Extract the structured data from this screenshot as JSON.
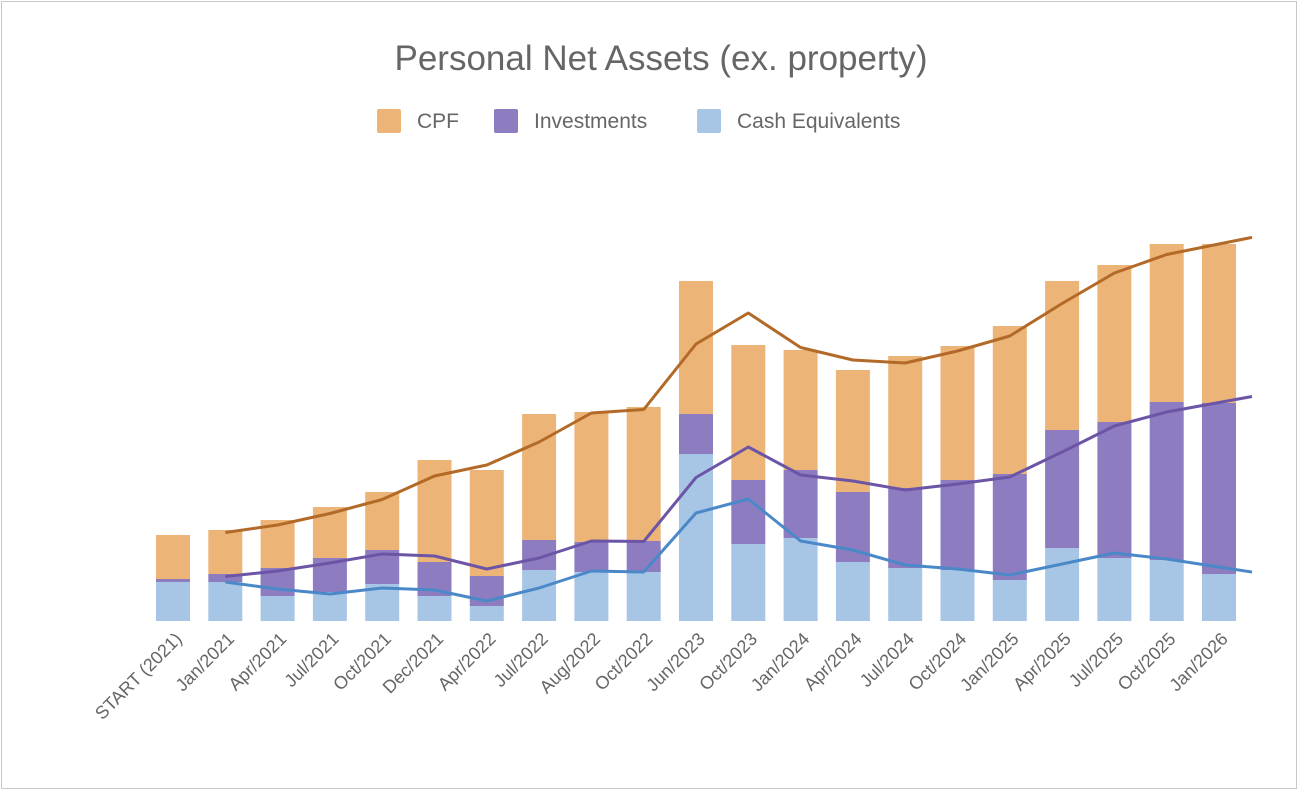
{
  "chart_data": {
    "type": "bar",
    "stacked": true,
    "title": "Personal Net Assets (ex. property)",
    "xlabel": "",
    "ylabel": "",
    "ylim": [
      0,
      420
    ],
    "grid": false,
    "y_axis_labels_shown": false,
    "legend_position": "top",
    "categories": [
      "START (2021)",
      "Jan/2021",
      "Apr/2021",
      "Jul/2021",
      "Oct/2021",
      "Dec/2021",
      "Apr/2022",
      "Jul/2022",
      "Aug/2022",
      "Oct/2022",
      "Jun/2023",
      "Oct/2023",
      "Jan/2024",
      "Apr/2024",
      "Jul/2024",
      "Oct/2024",
      "Jan/2025",
      "Apr/2025",
      "Jul/2025",
      "Oct/2025",
      "Jan/2026"
    ],
    "series": [
      {
        "name": "Cash Equivalents",
        "color": "#a7c6e6",
        "line_color": "#4a88c8",
        "values": [
          39,
          39,
          25,
          29,
          37,
          25,
          15,
          51,
          49,
          49,
          167,
          77,
          83,
          59,
          53,
          51,
          41,
          73,
          63,
          61,
          47
        ]
      },
      {
        "name": "Investments",
        "color": "#8d7dc0",
        "line_color": "#6c55a6",
        "values": [
          3,
          8,
          28,
          34,
          34,
          34,
          30,
          30,
          30,
          31,
          40,
          64,
          68,
          70,
          80,
          90,
          106,
          118,
          136,
          158,
          171
        ]
      },
      {
        "name": "CPF",
        "color": "#ecb577",
        "line_color": "#b36a28",
        "values": [
          44,
          44,
          48,
          51,
          58,
          102,
          106,
          126,
          130,
          134,
          133,
          135,
          120,
          122,
          132,
          134,
          148,
          149,
          157,
          158,
          159
        ]
      }
    ],
    "legend_order": [
      "CPF",
      "Investments",
      "Cash Equivalents"
    ],
    "trendlines": {
      "type": "moving average",
      "period": 2,
      "of": "cumulative stack"
    }
  }
}
